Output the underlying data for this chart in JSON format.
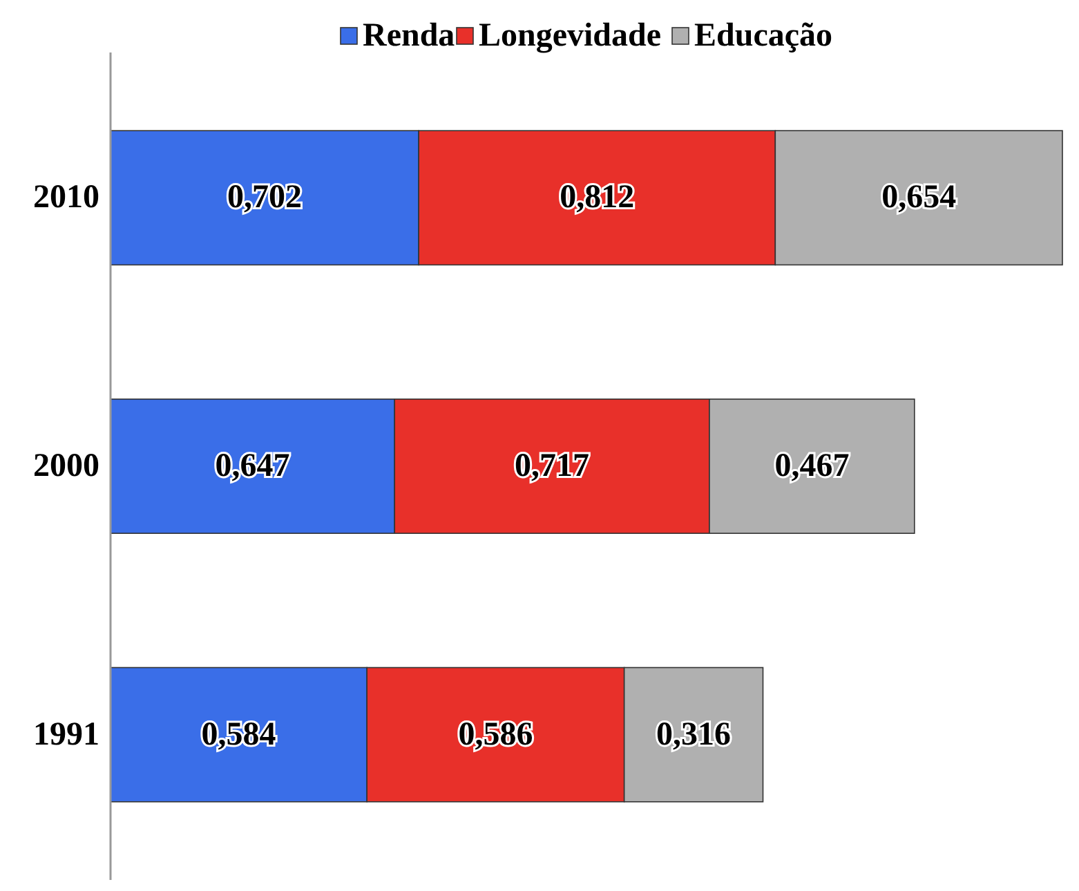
{
  "chart_data": {
    "type": "bar",
    "orientation": "horizontal",
    "stacked": true,
    "categories": [
      "2010",
      "2000",
      "1991"
    ],
    "series": [
      {
        "name": "Renda",
        "color": "#3a6ee8",
        "values": [
          0.702,
          0.647,
          0.584
        ],
        "value_labels": [
          "0,702",
          "0,647",
          "0,584"
        ]
      },
      {
        "name": "Longevidade",
        "color": "#e8302a",
        "values": [
          0.812,
          0.717,
          0.586
        ],
        "value_labels": [
          "0,812",
          "0,717",
          "0,586"
        ]
      },
      {
        "name": "Educação",
        "color": "#b0b0b0",
        "values": [
          0.654,
          0.467,
          0.316
        ],
        "value_labels": [
          "0,654",
          "0,467",
          "0,316"
        ]
      }
    ],
    "legend": "top"
  }
}
